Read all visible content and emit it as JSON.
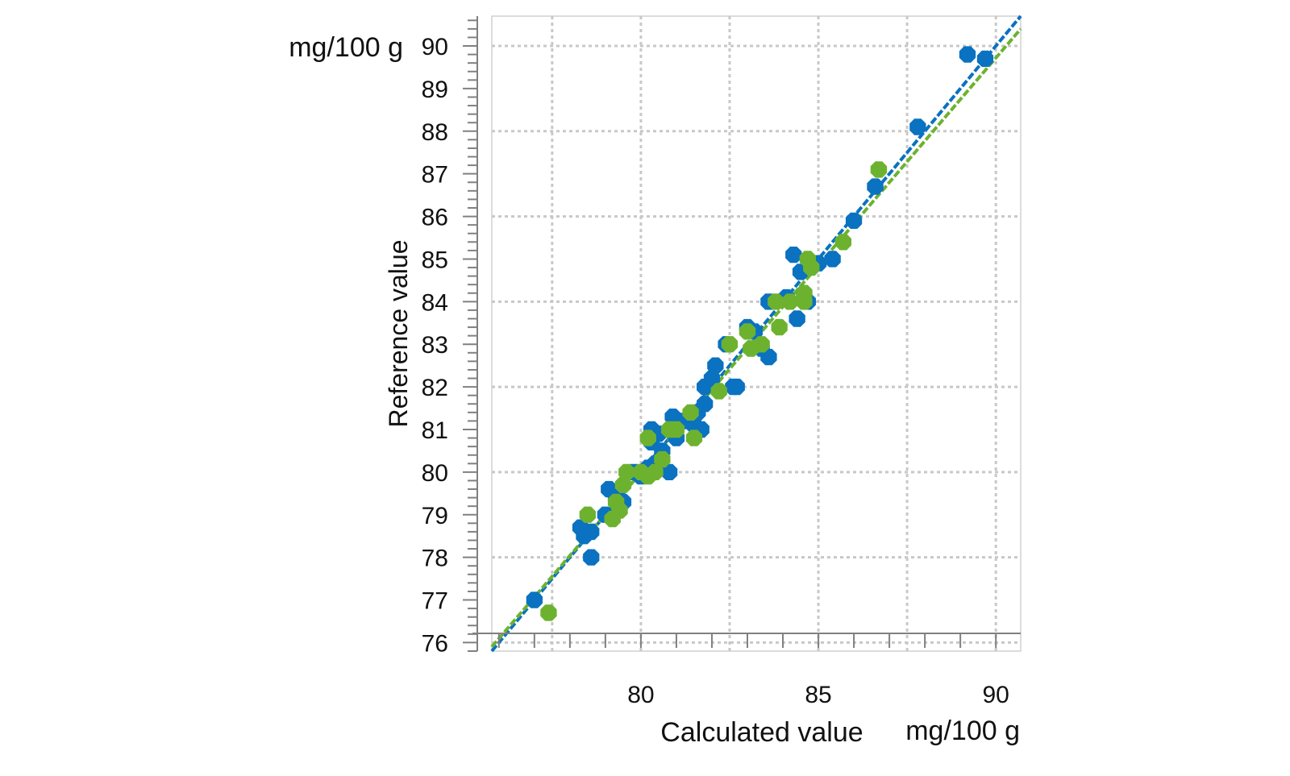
{
  "chart_data": {
    "type": "scatter",
    "title": "",
    "xlabel": "Calculated value",
    "xunit": "mg/100 g",
    "ylabel": "Reference value",
    "yunit": "mg/100 g",
    "xlim": [
      75.8,
      90.7
    ],
    "ylim": [
      75.8,
      90.7
    ],
    "xticks": [
      80,
      85,
      90
    ],
    "yticks": [
      76,
      77,
      78,
      79,
      80,
      81,
      82,
      83,
      84,
      85,
      86,
      87,
      88,
      89,
      90
    ],
    "grid": true,
    "legend": "none",
    "colors": {
      "series1": "#0a72c0",
      "series2": "#6db22f",
      "grid": "#c8c8c8",
      "axis": "#808080"
    },
    "series": [
      {
        "color": "#0a72c0",
        "fit_line": {
          "x": [
            75.8,
            90.7
          ],
          "y": [
            75.8,
            90.7
          ]
        },
        "points": [
          [
            77.0,
            77.0
          ],
          [
            78.3,
            78.7
          ],
          [
            78.4,
            78.5
          ],
          [
            78.6,
            78.6
          ],
          [
            78.6,
            78.0
          ],
          [
            79.0,
            79.0
          ],
          [
            79.1,
            79.6
          ],
          [
            79.3,
            79.4
          ],
          [
            79.5,
            79.3
          ],
          [
            79.8,
            80.0
          ],
          [
            80.0,
            79.9
          ],
          [
            80.2,
            80.1
          ],
          [
            80.4,
            80.2
          ],
          [
            80.6,
            80.5
          ],
          [
            80.3,
            80.7
          ],
          [
            80.3,
            81.0
          ],
          [
            80.5,
            80.9
          ],
          [
            80.8,
            80.0
          ],
          [
            80.9,
            81.3
          ],
          [
            81.0,
            80.8
          ],
          [
            81.2,
            81.2
          ],
          [
            81.5,
            81.1
          ],
          [
            81.7,
            81.0
          ],
          [
            81.6,
            81.4
          ],
          [
            81.8,
            81.6
          ],
          [
            81.8,
            82.0
          ],
          [
            82.0,
            82.2
          ],
          [
            82.1,
            82.5
          ],
          [
            82.4,
            83.0
          ],
          [
            82.6,
            82.0
          ],
          [
            82.7,
            82.0
          ],
          [
            83.0,
            83.4
          ],
          [
            83.2,
            83.3
          ],
          [
            83.4,
            82.9
          ],
          [
            83.6,
            82.7
          ],
          [
            83.6,
            84.0
          ],
          [
            84.1,
            84.1
          ],
          [
            84.3,
            85.1
          ],
          [
            84.4,
            83.6
          ],
          [
            84.5,
            84.7
          ],
          [
            84.6,
            84.2
          ],
          [
            84.7,
            84.0
          ],
          [
            85.0,
            84.9
          ],
          [
            85.4,
            85.0
          ],
          [
            86.0,
            85.9
          ],
          [
            86.6,
            86.7
          ],
          [
            87.8,
            88.1
          ],
          [
            89.2,
            89.8
          ],
          [
            89.7,
            89.7
          ]
        ]
      },
      {
        "color": "#6db22f",
        "fit_line": {
          "x": [
            75.8,
            90.7
          ],
          "y": [
            75.9,
            90.4
          ]
        },
        "points": [
          [
            77.4,
            76.7
          ],
          [
            78.5,
            79.0
          ],
          [
            79.2,
            78.9
          ],
          [
            79.3,
            79.3
          ],
          [
            79.4,
            79.1
          ],
          [
            79.5,
            79.7
          ],
          [
            79.6,
            80.0
          ],
          [
            80.0,
            80.0
          ],
          [
            80.2,
            79.9
          ],
          [
            80.4,
            80.0
          ],
          [
            80.2,
            80.8
          ],
          [
            80.6,
            80.3
          ],
          [
            80.8,
            81.0
          ],
          [
            81.0,
            81.0
          ],
          [
            81.4,
            81.4
          ],
          [
            81.5,
            80.8
          ],
          [
            82.2,
            81.9
          ],
          [
            82.5,
            83.0
          ],
          [
            83.0,
            83.3
          ],
          [
            83.1,
            82.9
          ],
          [
            83.4,
            83.0
          ],
          [
            83.8,
            84.0
          ],
          [
            83.9,
            83.4
          ],
          [
            84.2,
            84.0
          ],
          [
            84.6,
            84.2
          ],
          [
            84.6,
            84.0
          ],
          [
            84.7,
            85.0
          ],
          [
            84.8,
            84.8
          ],
          [
            85.7,
            85.4
          ],
          [
            86.7,
            87.1
          ]
        ]
      }
    ]
  }
}
